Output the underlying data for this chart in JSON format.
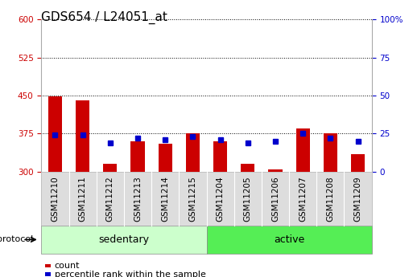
{
  "title": "GDS654 / L24051_at",
  "samples": [
    "GSM11210",
    "GSM11211",
    "GSM11212",
    "GSM11213",
    "GSM11214",
    "GSM11215",
    "GSM11204",
    "GSM11205",
    "GSM11206",
    "GSM11207",
    "GSM11208",
    "GSM11209"
  ],
  "groups": [
    "sedentary",
    "sedentary",
    "sedentary",
    "sedentary",
    "sedentary",
    "sedentary",
    "active",
    "active",
    "active",
    "active",
    "active",
    "active"
  ],
  "count": [
    449,
    440,
    315,
    360,
    355,
    375,
    360,
    315,
    305,
    385,
    375,
    335
  ],
  "percentile": [
    24,
    24,
    19,
    22,
    21,
    23,
    21,
    19,
    20,
    25,
    22,
    20
  ],
  "ylim_left": [
    300,
    600
  ],
  "ylim_right": [
    0,
    100
  ],
  "yticks_left": [
    300,
    375,
    450,
    525,
    600
  ],
  "yticks_right": [
    0,
    25,
    50,
    75,
    100
  ],
  "bar_color": "#cc0000",
  "dot_color": "#0000cc",
  "group_colors": {
    "sedentary": "#ccffcc",
    "active": "#55ee55"
  },
  "sample_box_color": "#dddddd",
  "title_fontsize": 11,
  "tick_fontsize": 7.5,
  "label_fontsize": 8,
  "left_axis_color": "#cc0000",
  "right_axis_color": "#0000cc",
  "bar_width": 0.5,
  "baseline": 300,
  "group_label_fontsize": 9,
  "protocol_label": "protocol",
  "legend_count": "count",
  "legend_percentile": "percentile rank within the sample"
}
